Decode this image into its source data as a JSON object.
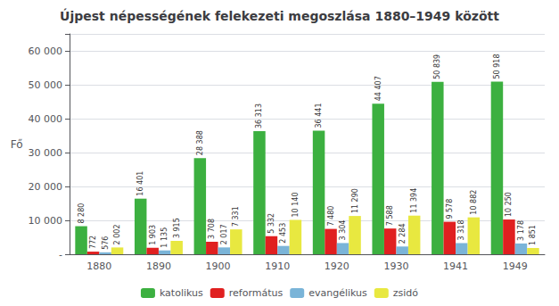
{
  "chart_data": {
    "type": "bar",
    "title": "Újpest népességének felekezeti megoszlása 1880–1949 között",
    "ylabel": "Fő",
    "categories": [
      "1880",
      "1890",
      "1900",
      "1910",
      "1920",
      "1930",
      "1941",
      "1949"
    ],
    "series": [
      {
        "name": "katolikus",
        "color": "#3cb040",
        "values": [
          8280,
          16401,
          28388,
          36313,
          36441,
          44407,
          50839,
          50918
        ],
        "value_labels": [
          "8 280",
          "16 401",
          "28 388",
          "36 313",
          "36 441",
          "44 407",
          "50 839",
          "50 918"
        ]
      },
      {
        "name": "református",
        "color": "#e02020",
        "values": [
          772,
          1903,
          3708,
          5332,
          7480,
          7588,
          9578,
          10250
        ],
        "value_labels": [
          "772",
          "1 903",
          "3 708",
          "5 332",
          "7 480",
          "7 588",
          "9 578",
          "10 250"
        ]
      },
      {
        "name": "evangélikus",
        "color": "#7ab4d8",
        "values": [
          576,
          1135,
          2017,
          2453,
          3304,
          2284,
          3318,
          3178
        ],
        "value_labels": [
          "576",
          "1 135",
          "2 017",
          "2 453",
          "3 304",
          "2 284",
          "3 318",
          "3 178"
        ]
      },
      {
        "name": "zsidó",
        "color": "#e8e840",
        "values": [
          2002,
          3915,
          7331,
          10140,
          11290,
          11394,
          10882,
          1851
        ],
        "value_labels": [
          "2 002",
          "3 915",
          "7 331",
          "10 140",
          "11 290",
          "11 394",
          "10 882",
          "1 851"
        ]
      }
    ],
    "ylim": [
      0,
      65000
    ],
    "yticks": [
      {
        "value": 0,
        "label": "-"
      },
      {
        "value": 10000,
        "label": "10 000"
      },
      {
        "value": 20000,
        "label": "20 000"
      },
      {
        "value": 30000,
        "label": "30 000"
      },
      {
        "value": 40000,
        "label": "40 000"
      },
      {
        "value": 50000,
        "label": "50 000"
      },
      {
        "value": 60000,
        "label": "60 000"
      }
    ],
    "grid": true,
    "legend": "bottom",
    "data_labels": true
  }
}
